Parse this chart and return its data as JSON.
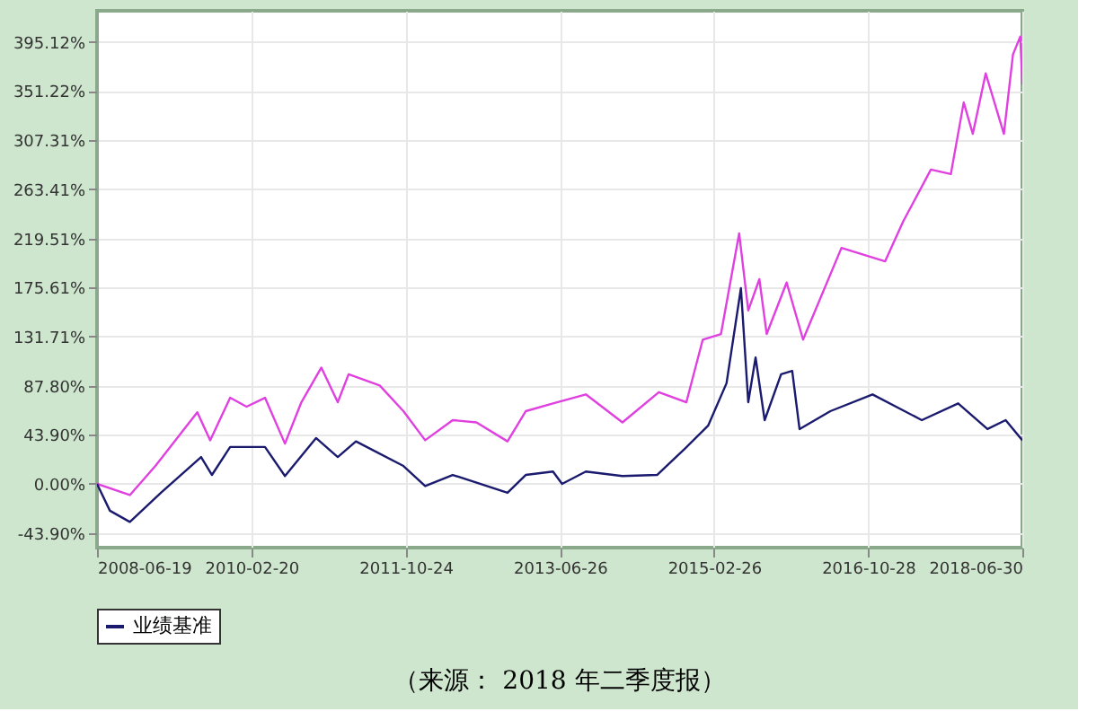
{
  "chart_data": {
    "type": "line",
    "annotations": [
      "（来源： 2018 年二季度报）"
    ],
    "series": [
      {
        "color": "#e040e0",
        "x": [
          "2008-06-19",
          "2008-10-27",
          "2009-02-05",
          "2009-07-21",
          "2009-09-10",
          "2009-11-28",
          "2010-02-01",
          "2010-04-15",
          "2010-07-03",
          "2010-09-06",
          "2010-11-24",
          "2011-01-28",
          "2011-03-12",
          "2011-07-13",
          "2011-10-15",
          "2012-01-09",
          "2012-04-27",
          "2012-07-30",
          "2012-11-30",
          "2013-02-10",
          "2013-05-29",
          "2013-10-06",
          "2014-02-28",
          "2014-07-22",
          "2014-11-08",
          "2015-01-12",
          "2015-03-25",
          "2015-06-05",
          "2015-07-11",
          "2015-08-24",
          "2015-09-22",
          "2015-12-10",
          "2016-02-13",
          "2016-07-14",
          "2017-01-03",
          "2017-03-16",
          "2017-07-03",
          "2017-09-20",
          "2017-11-10",
          "2017-12-16",
          "2018-02-05",
          "2018-04-18",
          "2018-05-24",
          "2018-06-22",
          "2018-06-30"
        ],
        "values": [
          0,
          -10,
          16,
          64,
          39,
          77,
          69,
          77,
          36,
          73,
          104,
          73,
          98,
          88,
          65,
          39,
          57,
          55,
          38,
          65,
          72,
          80,
          55,
          82,
          73,
          129,
          134,
          224,
          155,
          183,
          134,
          180,
          129,
          211,
          199,
          235,
          281,
          277,
          341,
          313,
          367,
          313,
          384,
          400,
          357
        ]
      },
      {
        "name": "业绩基准",
        "color": "#1a1a6e",
        "x": [
          "2008-06-19",
          "2008-08-09",
          "2008-10-27",
          "2009-02-27",
          "2009-08-05",
          "2009-09-17",
          "2009-11-28",
          "2010-04-15",
          "2010-07-03",
          "2010-11-03",
          "2011-01-28",
          "2011-04-10",
          "2011-10-15",
          "2012-01-09",
          "2012-04-27",
          "2012-11-30",
          "2013-02-10",
          "2013-05-29",
          "2013-07-04",
          "2013-10-06",
          "2014-02-28",
          "2014-07-15",
          "2014-10-31",
          "2015-02-02",
          "2015-04-16",
          "2015-06-12",
          "2015-07-11",
          "2015-08-09",
          "2015-09-14",
          "2015-11-18",
          "2016-01-01",
          "2016-01-30",
          "2016-05-31",
          "2016-11-14",
          "2017-05-28",
          "2017-10-19",
          "2018-02-12",
          "2018-04-25",
          "2018-06-30"
        ],
        "values": [
          0,
          -24,
          -34,
          -8,
          24,
          8,
          33,
          33,
          7,
          41,
          24,
          38,
          16,
          -2,
          8,
          -8,
          8,
          11,
          0,
          11,
          7,
          8,
          31,
          52,
          90,
          175,
          73,
          113,
          57,
          98,
          101,
          49,
          65,
          80,
          57,
          72,
          49,
          57,
          39
        ]
      }
    ],
    "xlim": [
      "2008-06-19",
      "2018-06-30"
    ],
    "xticks": [
      "2008-06-19",
      "2010-02-20",
      "2011-10-24",
      "2013-06-26",
      "2015-02-26",
      "2016-10-28",
      "2018-06-30"
    ],
    "ylim": [
      -57,
      423
    ],
    "yticks": [
      {
        "value": -43.9,
        "label": "-43.90%"
      },
      {
        "value": 0,
        "label": "0.00%"
      },
      {
        "value": 43.9,
        "label": "43.90%"
      },
      {
        "value": 87.8,
        "label": "87.80%"
      },
      {
        "value": 131.71,
        "label": "131.71%"
      },
      {
        "value": 175.61,
        "label": "175.61%"
      },
      {
        "value": 219.51,
        "label": "219.51%"
      },
      {
        "value": 263.41,
        "label": "263.41%"
      },
      {
        "value": 307.31,
        "label": "307.31%"
      },
      {
        "value": 351.22,
        "label": "351.22%"
      },
      {
        "value": 395.12,
        "label": "395.12%"
      }
    ],
    "grid": true,
    "legend": "bottom",
    "marker": "none",
    "line_style": "solid"
  }
}
